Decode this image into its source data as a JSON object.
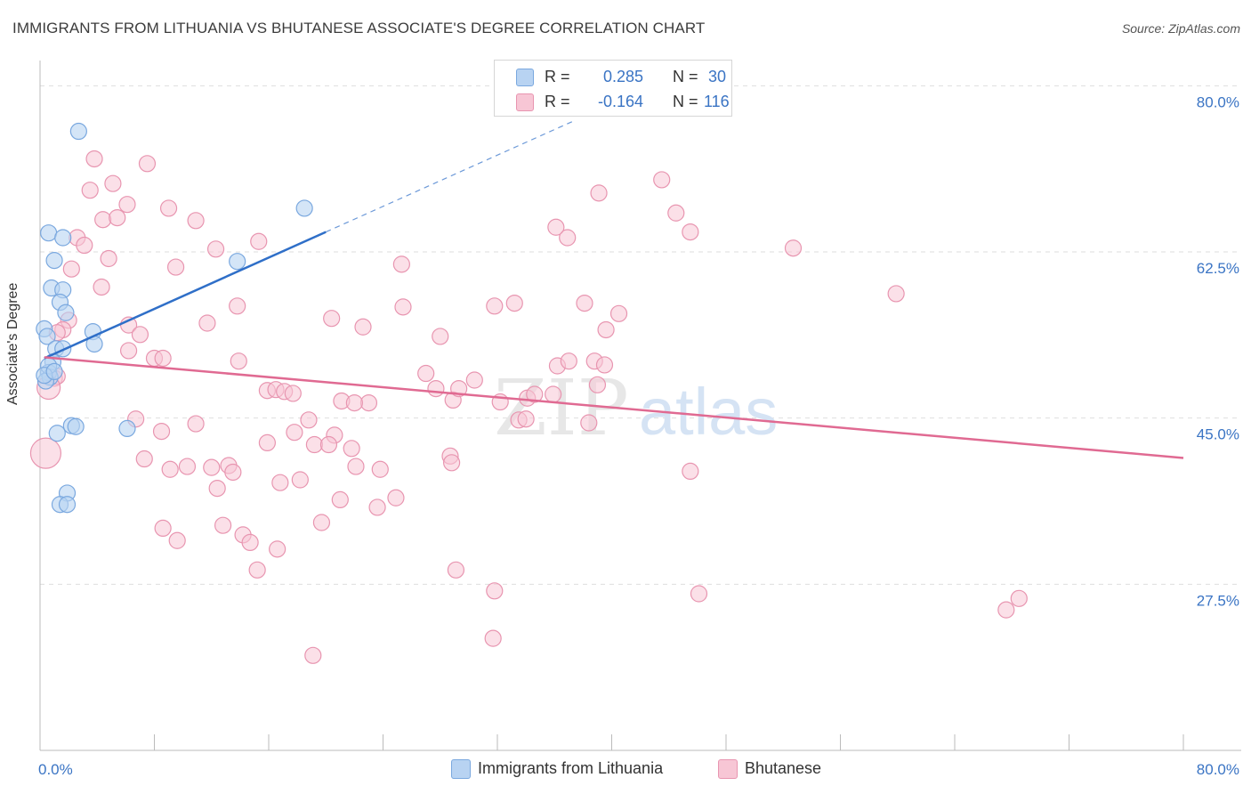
{
  "title": "IMMIGRANTS FROM LITHUANIA VS BHUTANESE ASSOCIATE'S DEGREE CORRELATION CHART",
  "source": "Source: ZipAtlas.com",
  "watermark": {
    "zip": "ZIP",
    "atlas": "atlas"
  },
  "legend": {
    "r_label": "R =",
    "n_label": "N =",
    "rows": [
      {
        "r": "0.285",
        "n": "30"
      },
      {
        "r": "-0.164",
        "n": "116"
      }
    ]
  },
  "bottom_legend": [
    "Immigrants from Lithuania",
    "Bhutanese"
  ],
  "colors": {
    "blue_fill": "#b8d3f2",
    "blue_stroke": "#7aa8df",
    "blue_line": "#2f6fc8",
    "pink_fill": "#f7c6d5",
    "pink_stroke": "#e895b0",
    "pink_line": "#e06a92",
    "tick_label": "#3a74c4",
    "grid": "#dedede"
  },
  "chart_data": {
    "type": "scatter",
    "title": "IMMIGRANTS FROM LITHUANIA VS BHUTANESE ASSOCIATE'S DEGREE CORRELATION CHART",
    "xlabel": "",
    "ylabel": "Associate's Degree",
    "xlim": [
      0,
      80
    ],
    "ylim": [
      10,
      82
    ],
    "x_tick_labels": [
      "0.0%",
      "80.0%"
    ],
    "y_ticks": [
      27.5,
      45.0,
      62.5,
      80.0
    ],
    "y_tick_labels": [
      "27.5%",
      "45.0%",
      "62.5%",
      "80.0%"
    ],
    "grid": true,
    "legend_position": "top-center",
    "series": [
      {
        "name": "Immigrants from Lithuania",
        "r": 0.285,
        "n": 30,
        "trend": {
          "x0": 0.3,
          "y0": 51.3,
          "x1": 20.0,
          "y1": 64.6,
          "dash_x1": 37.5,
          "dash_y1": 76.4
        },
        "points": [
          [
            2.7,
            75.2
          ],
          [
            18.5,
            67.1
          ],
          [
            0.6,
            64.5
          ],
          [
            1.6,
            64.0
          ],
          [
            1.0,
            61.6
          ],
          [
            13.8,
            61.5
          ],
          [
            0.8,
            58.7
          ],
          [
            1.6,
            58.5
          ],
          [
            1.4,
            57.2
          ],
          [
            1.8,
            56.1
          ],
          [
            0.3,
            54.4
          ],
          [
            3.7,
            54.1
          ],
          [
            0.5,
            53.6
          ],
          [
            3.8,
            52.8
          ],
          [
            1.1,
            52.3
          ],
          [
            1.6,
            52.3
          ],
          [
            0.9,
            50.9
          ],
          [
            0.6,
            49.8
          ],
          [
            0.7,
            49.3
          ],
          [
            0.4,
            48.9
          ],
          [
            2.2,
            44.2
          ],
          [
            2.5,
            44.1
          ],
          [
            6.1,
            43.9
          ],
          [
            1.2,
            43.4
          ],
          [
            1.9,
            37.1
          ],
          [
            1.4,
            35.9
          ],
          [
            1.9,
            35.9
          ],
          [
            0.6,
            50.5
          ],
          [
            0.3,
            49.5
          ],
          [
            1.0,
            49.9
          ]
        ]
      },
      {
        "name": "Bhutanese",
        "r": -0.164,
        "n": 116,
        "trend": {
          "x0": 0.3,
          "y0": 51.4,
          "x1": 80.0,
          "y1": 40.8
        },
        "points": [
          [
            3.8,
            72.3
          ],
          [
            7.5,
            71.8
          ],
          [
            5.1,
            69.7
          ],
          [
            3.5,
            69.0
          ],
          [
            6.1,
            67.5
          ],
          [
            9.0,
            67.1
          ],
          [
            4.4,
            65.9
          ],
          [
            5.4,
            66.1
          ],
          [
            10.9,
            65.8
          ],
          [
            2.6,
            64.0
          ],
          [
            3.1,
            63.2
          ],
          [
            15.3,
            63.6
          ],
          [
            12.3,
            62.8
          ],
          [
            4.8,
            61.8
          ],
          [
            2.2,
            60.7
          ],
          [
            9.5,
            60.9
          ],
          [
            4.3,
            58.8
          ],
          [
            13.8,
            56.8
          ],
          [
            2.0,
            55.3
          ],
          [
            6.2,
            54.8
          ],
          [
            11.7,
            55.0
          ],
          [
            1.6,
            54.3
          ],
          [
            1.2,
            54.0
          ],
          [
            7.0,
            53.8
          ],
          [
            6.2,
            52.1
          ],
          [
            8.0,
            51.3
          ],
          [
            8.6,
            51.3
          ],
          [
            13.9,
            51.0
          ],
          [
            1.0,
            49.2
          ],
          [
            1.2,
            49.4
          ],
          [
            0.6,
            48.2
          ],
          [
            0.4,
            41.3
          ],
          [
            15.9,
            47.9
          ],
          [
            16.5,
            48.0
          ],
          [
            17.1,
            47.8
          ],
          [
            17.7,
            47.6
          ],
          [
            6.7,
            44.9
          ],
          [
            8.5,
            43.6
          ],
          [
            10.9,
            44.4
          ],
          [
            18.8,
            44.8
          ],
          [
            17.8,
            43.5
          ],
          [
            20.6,
            43.2
          ],
          [
            15.9,
            42.4
          ],
          [
            19.2,
            42.2
          ],
          [
            20.2,
            42.2
          ],
          [
            21.8,
            41.8
          ],
          [
            7.3,
            40.7
          ],
          [
            9.1,
            39.6
          ],
          [
            10.3,
            39.9
          ],
          [
            12.0,
            39.8
          ],
          [
            13.2,
            40.0
          ],
          [
            13.5,
            39.3
          ],
          [
            12.4,
            37.6
          ],
          [
            16.8,
            38.2
          ],
          [
            18.2,
            38.5
          ],
          [
            21.0,
            36.4
          ],
          [
            22.1,
            39.9
          ],
          [
            23.8,
            39.6
          ],
          [
            24.9,
            36.6
          ],
          [
            23.6,
            35.6
          ],
          [
            8.6,
            33.4
          ],
          [
            9.6,
            32.1
          ],
          [
            12.8,
            33.7
          ],
          [
            14.2,
            32.7
          ],
          [
            14.7,
            31.9
          ],
          [
            16.6,
            31.2
          ],
          [
            19.7,
            34.0
          ],
          [
            15.2,
            29.0
          ],
          [
            22.6,
            54.6
          ],
          [
            25.4,
            56.7
          ],
          [
            25.3,
            61.2
          ],
          [
            20.4,
            55.5
          ],
          [
            21.1,
            46.8
          ],
          [
            23.0,
            46.6
          ],
          [
            22.0,
            46.6
          ],
          [
            27.0,
            49.7
          ],
          [
            28.0,
            53.6
          ],
          [
            27.7,
            48.1
          ],
          [
            28.9,
            46.9
          ],
          [
            29.3,
            48.1
          ],
          [
            30.4,
            49.0
          ],
          [
            31.8,
            56.8
          ],
          [
            33.2,
            57.1
          ],
          [
            32.2,
            46.7
          ],
          [
            34.1,
            47.1
          ],
          [
            34.6,
            47.5
          ],
          [
            33.5,
            44.8
          ],
          [
            34.0,
            44.9
          ],
          [
            36.2,
            50.5
          ],
          [
            35.9,
            47.5
          ],
          [
            37.0,
            51.0
          ],
          [
            36.9,
            64.0
          ],
          [
            36.1,
            65.1
          ],
          [
            38.1,
            57.1
          ],
          [
            38.8,
            51.0
          ],
          [
            39.0,
            48.5
          ],
          [
            39.6,
            54.3
          ],
          [
            40.5,
            56.0
          ],
          [
            39.5,
            50.6
          ],
          [
            38.4,
            44.5
          ],
          [
            39.1,
            68.7
          ],
          [
            28.7,
            41.0
          ],
          [
            28.8,
            40.3
          ],
          [
            29.1,
            29.0
          ],
          [
            31.8,
            26.8
          ],
          [
            31.7,
            21.8
          ],
          [
            19.1,
            20.0
          ],
          [
            43.5,
            70.1
          ],
          [
            44.5,
            66.6
          ],
          [
            45.5,
            64.6
          ],
          [
            45.5,
            39.4
          ],
          [
            46.1,
            26.5
          ],
          [
            52.7,
            62.9
          ],
          [
            59.9,
            58.1
          ],
          [
            67.6,
            24.8
          ],
          [
            68.5,
            26.0
          ]
        ]
      }
    ]
  }
}
